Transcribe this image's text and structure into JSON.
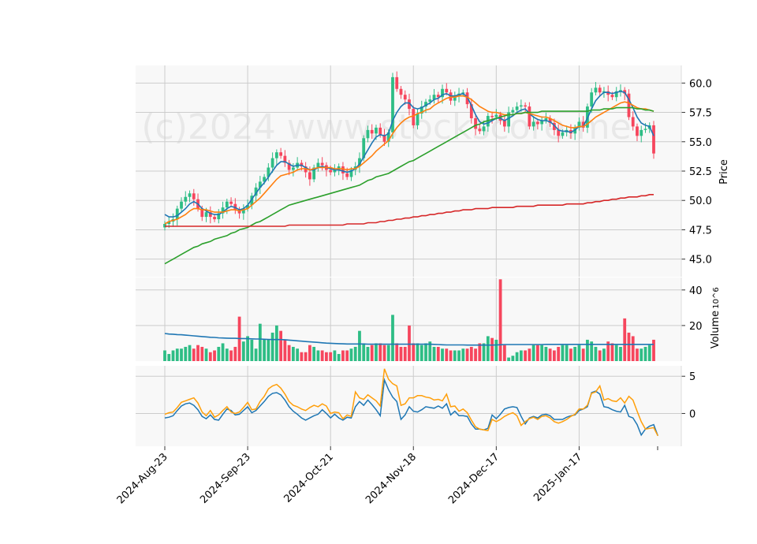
{
  "chart_data": [
    {
      "type": "candlestick",
      "panel": "price",
      "ylabel": "Price",
      "ylim": [
        43.5,
        61.5
      ],
      "yticks": [
        "45.0",
        "47.5",
        "50.0",
        "52.5",
        "55.0",
        "57.5",
        "60.0"
      ],
      "watermark": "(c)2024 www.stockscore.me",
      "xticks": [
        "2024-Aug-23",
        "2024-Sep-23",
        "2024-Oct-21",
        "2024-Nov-18",
        "2024-Dec-17",
        "2025-Jan-17"
      ],
      "xtick_index": [
        0,
        20,
        40,
        60,
        80,
        100
      ],
      "up_color": "#2ebd85",
      "down_color": "#f6465d",
      "close": [
        48.0,
        48.2,
        48.4,
        49.3,
        49.9,
        50.3,
        50.6,
        50.1,
        49.3,
        48.6,
        49.0,
        48.6,
        48.4,
        48.9,
        49.4,
        49.9,
        49.7,
        49.2,
        48.9,
        49.3,
        49.6,
        50.4,
        51.1,
        51.6,
        52.0,
        52.8,
        53.6,
        54.1,
        53.8,
        53.2,
        52.6,
        52.8,
        53.2,
        52.9,
        52.4,
        51.8,
        52.8,
        53.2,
        53.0,
        52.6,
        52.4,
        52.6,
        52.9,
        52.3,
        52.0,
        52.6,
        52.9,
        53.6,
        55.3,
        56.0,
        55.7,
        56.2,
        55.6,
        55.0,
        55.8,
        60.5,
        59.5,
        59.0,
        58.6,
        57.8,
        56.4,
        57.4,
        58.0,
        58.4,
        58.6,
        59.0,
        58.8,
        59.5,
        59.2,
        58.5,
        58.9,
        59.1,
        59.2,
        58.2,
        57.0,
        56.1,
        55.9,
        56.3,
        57.2,
        57.1,
        57.3,
        56.8,
        56.3,
        57.5,
        57.7,
        58.0,
        58.1,
        58.0,
        56.3,
        56.7,
        56.5,
        56.8,
        57.0,
        56.6,
        56.0,
        55.5,
        55.8,
        56.0,
        55.7,
        56.2,
        56.7,
        56.2,
        58.0,
        59.2,
        59.6,
        59.2,
        59.3,
        59.0,
        58.8,
        59.3,
        59.4,
        59.1,
        57.1,
        56.3,
        55.5,
        56.0,
        56.1,
        56.4,
        54.0
      ],
      "ma_lines": [
        {
          "color": "#1f77b4",
          "values": [
            48.8,
            48.6,
            48.6,
            48.7,
            49.0,
            49.3,
            49.7,
            49.9,
            49.7,
            49.3,
            49.1,
            48.9,
            48.8,
            48.8,
            49.0,
            49.3,
            49.5,
            49.4,
            49.2,
            49.3,
            49.6,
            50.1,
            50.6,
            51.1,
            51.5,
            52.0,
            52.5,
            53.0,
            53.3,
            53.3,
            53.1,
            52.9,
            53.0,
            53.0,
            52.8,
            52.6,
            52.6,
            52.8,
            52.9,
            52.8,
            52.7,
            52.6,
            52.6,
            52.5,
            52.4,
            52.5,
            52.7,
            53.1,
            53.7,
            54.3,
            54.9,
            55.4,
            55.6,
            55.5,
            55.7,
            56.8,
            57.5,
            58.0,
            58.3,
            58.3,
            57.9,
            57.8,
            57.9,
            58.1,
            58.3,
            58.6,
            58.7,
            59.0,
            59.1,
            58.9,
            58.9,
            59.0,
            59.1,
            58.8,
            58.1,
            57.3,
            56.7,
            56.5,
            56.6,
            56.8,
            57.0,
            57.0,
            56.8,
            57.0,
            57.2,
            57.5,
            57.7,
            57.8,
            57.4,
            57.1,
            56.9,
            56.8,
            56.8,
            56.7,
            56.4,
            56.0,
            55.9,
            55.9,
            55.8,
            56.0,
            56.3,
            56.3,
            57.0,
            57.8,
            58.5,
            58.9,
            59.2,
            59.2,
            59.1,
            59.2,
            59.3,
            59.2,
            58.6,
            57.9,
            57.1,
            56.6,
            56.4,
            56.3,
            55.5
          ]
        },
        {
          "color": "#ff7f0e",
          "values": [
            48.0,
            48.2,
            48.3,
            48.4,
            48.6,
            48.8,
            49.1,
            49.3,
            49.3,
            49.2,
            49.2,
            49.1,
            49.0,
            49.0,
            49.0,
            49.1,
            49.2,
            49.2,
            49.1,
            49.2,
            49.3,
            49.6,
            49.9,
            50.2,
            50.6,
            51.0,
            51.4,
            51.8,
            52.1,
            52.2,
            52.3,
            52.4,
            52.6,
            52.7,
            52.7,
            52.6,
            52.7,
            52.8,
            52.8,
            52.8,
            52.8,
            52.7,
            52.7,
            52.7,
            52.6,
            52.7,
            52.7,
            52.9,
            53.2,
            53.5,
            53.8,
            54.2,
            54.5,
            54.8,
            55.1,
            55.7,
            56.2,
            56.6,
            56.9,
            57.1,
            57.2,
            57.4,
            57.5,
            57.7,
            57.8,
            58.1,
            58.3,
            58.5,
            58.7,
            58.8,
            58.8,
            58.9,
            58.9,
            58.8,
            58.6,
            58.3,
            58.0,
            57.8,
            57.6,
            57.5,
            57.5,
            57.4,
            57.3,
            57.3,
            57.3,
            57.4,
            57.4,
            57.5,
            57.4,
            57.3,
            57.2,
            57.1,
            57.1,
            57.0,
            56.8,
            56.6,
            56.4,
            56.3,
            56.2,
            56.2,
            56.3,
            56.3,
            56.5,
            56.8,
            57.1,
            57.3,
            57.5,
            57.7,
            57.9,
            58.1,
            58.3,
            58.4,
            58.3,
            58.1,
            57.9,
            57.8,
            57.8,
            57.7,
            57.6
          ]
        },
        {
          "color": "#2ca02c",
          "values": [
            44.6,
            44.8,
            45.0,
            45.2,
            45.4,
            45.6,
            45.8,
            46.0,
            46.1,
            46.3,
            46.4,
            46.5,
            46.7,
            46.8,
            46.9,
            47.0,
            47.2,
            47.3,
            47.5,
            47.6,
            47.7,
            47.9,
            48.1,
            48.2,
            48.4,
            48.6,
            48.8,
            49.0,
            49.2,
            49.4,
            49.6,
            49.7,
            49.8,
            49.9,
            50.0,
            50.1,
            50.2,
            50.3,
            50.4,
            50.5,
            50.6,
            50.7,
            50.8,
            50.9,
            51.0,
            51.1,
            51.2,
            51.3,
            51.5,
            51.7,
            51.8,
            52.0,
            52.1,
            52.2,
            52.3,
            52.5,
            52.7,
            52.9,
            53.1,
            53.3,
            53.4,
            53.6,
            53.8,
            54.0,
            54.2,
            54.4,
            54.6,
            54.8,
            55.0,
            55.2,
            55.4,
            55.6,
            55.8,
            56.0,
            56.2,
            56.4,
            56.5,
            56.7,
            56.8,
            56.9,
            57.0,
            57.1,
            57.2,
            57.3,
            57.3,
            57.4,
            57.4,
            57.5,
            57.5,
            57.5,
            57.5,
            57.6,
            57.6,
            57.6,
            57.6,
            57.6,
            57.6,
            57.6,
            57.6,
            57.6,
            57.6,
            57.6,
            57.6,
            57.7,
            57.7,
            57.7,
            57.8,
            57.8,
            57.8,
            57.9,
            57.9,
            57.9,
            57.9,
            57.9,
            57.8,
            57.8,
            57.7,
            57.7,
            57.6
          ]
        },
        {
          "color": "#d62728",
          "values": [
            47.8,
            47.8,
            47.8,
            47.8,
            47.8,
            47.8,
            47.8,
            47.8,
            47.8,
            47.8,
            47.8,
            47.8,
            47.8,
            47.8,
            47.8,
            47.8,
            47.8,
            47.8,
            47.8,
            47.8,
            47.8,
            47.8,
            47.8,
            47.8,
            47.8,
            47.8,
            47.8,
            47.8,
            47.8,
            47.8,
            47.9,
            47.9,
            47.9,
            47.9,
            47.9,
            47.9,
            47.9,
            47.9,
            47.9,
            47.9,
            47.9,
            47.9,
            47.9,
            47.9,
            48.0,
            48.0,
            48.0,
            48.0,
            48.0,
            48.1,
            48.1,
            48.1,
            48.2,
            48.2,
            48.3,
            48.3,
            48.4,
            48.4,
            48.5,
            48.5,
            48.6,
            48.6,
            48.7,
            48.7,
            48.8,
            48.8,
            48.9,
            48.9,
            49.0,
            49.0,
            49.1,
            49.1,
            49.2,
            49.2,
            49.2,
            49.3,
            49.3,
            49.3,
            49.3,
            49.4,
            49.4,
            49.4,
            49.4,
            49.4,
            49.4,
            49.5,
            49.5,
            49.5,
            49.5,
            49.5,
            49.6,
            49.6,
            49.6,
            49.6,
            49.6,
            49.6,
            49.6,
            49.7,
            49.7,
            49.7,
            49.7,
            49.7,
            49.8,
            49.8,
            49.9,
            49.9,
            50.0,
            50.0,
            50.1,
            50.1,
            50.2,
            50.2,
            50.3,
            50.3,
            50.3,
            50.4,
            50.4,
            50.5,
            50.5
          ]
        }
      ]
    },
    {
      "type": "bar",
      "panel": "volume",
      "ylabel": "Volume",
      "ylabel_exponent": "10^6",
      "ylim": [
        0,
        47
      ],
      "yticks": [
        "20",
        "40"
      ],
      "values": [
        6,
        4,
        6,
        7,
        7,
        8,
        9,
        7,
        9,
        8,
        7,
        5,
        6,
        8,
        10,
        7,
        6,
        8,
        25,
        11,
        14,
        12,
        7,
        21,
        12,
        12,
        16,
        20,
        17,
        12,
        9,
        8,
        7,
        5,
        5,
        9,
        8,
        6,
        6,
        5,
        5,
        6,
        4,
        6,
        6,
        7,
        8,
        17,
        10,
        8,
        9,
        10,
        10,
        9,
        9,
        26,
        10,
        8,
        8,
        20,
        10,
        10,
        9,
        10,
        11,
        8,
        8,
        7,
        7,
        6,
        6,
        6,
        7,
        7,
        8,
        7,
        10,
        10,
        14,
        13,
        12,
        46,
        9,
        2,
        3,
        5,
        6,
        6,
        7,
        9,
        9,
        9,
        8,
        7,
        6,
        8,
        9,
        9,
        7,
        8,
        9,
        7,
        12,
        11,
        8,
        6,
        7,
        11,
        10,
        9,
        8,
        24,
        16,
        14,
        7,
        7,
        8,
        9,
        12
      ],
      "ma": [
        15.5,
        15.2,
        15.1,
        14.9,
        14.8,
        14.6,
        14.4,
        14.2,
        14.0,
        13.8,
        13.6,
        13.4,
        13.3,
        13.1,
        13.0,
        12.9,
        12.8,
        12.8,
        12.7,
        12.7,
        12.6,
        12.5,
        12.4,
        12.4,
        12.3,
        12.2,
        12.1,
        12.1,
        12.1,
        12.0,
        11.8,
        11.6,
        11.4,
        11.2,
        11.0,
        10.8,
        10.7,
        10.5,
        10.3,
        10.1,
        10.0,
        9.9,
        9.8,
        9.7,
        9.6,
        9.6,
        9.6,
        9.6,
        9.6,
        9.5,
        9.5,
        9.5,
        9.5,
        9.5,
        9.5,
        9.5,
        9.5,
        9.5,
        9.5,
        9.5,
        9.5,
        9.5,
        9.5,
        9.5,
        9.5,
        9.4,
        9.3,
        9.2,
        9.1,
        9.1,
        9.1,
        9.1,
        9.1,
        9.0,
        9.0,
        9.0,
        9.0,
        9.0,
        9.0,
        9.0,
        9.1,
        9.2,
        9.3,
        9.3,
        9.3,
        9.3,
        9.3,
        9.3,
        9.3,
        9.3,
        9.3,
        9.3,
        9.4,
        9.4,
        9.4,
        9.4,
        9.4,
        9.4,
        9.4,
        9.4,
        9.4,
        9.4,
        9.4,
        9.4,
        9.4,
        9.4,
        9.4,
        9.4,
        9.4,
        9.4,
        9.4,
        9.4,
        9.4,
        9.4,
        9.4,
        9.4,
        9.4,
        9.4,
        9.4
      ],
      "ma_color": "#1f77b4"
    },
    {
      "type": "line",
      "panel": "macd",
      "ylim": [
        -4.4,
        6.4
      ],
      "yticks": [
        "0",
        "5"
      ],
      "series": [
        {
          "color": "#1f77b4",
          "values": [
            -0.6,
            -0.5,
            -0.3,
            0.4,
            1.0,
            1.3,
            1.4,
            1.1,
            0.5,
            -0.4,
            -0.7,
            -0.2,
            -0.8,
            -0.9,
            -0.1,
            0.6,
            0.4,
            -0.2,
            -0.1,
            0.4,
            0.9,
            0.1,
            0.4,
            1.0,
            1.6,
            2.3,
            2.7,
            2.8,
            2.5,
            1.8,
            0.9,
            0.3,
            -0.1,
            -0.6,
            -0.9,
            -0.6,
            -0.3,
            -0.1,
            0.5,
            0.0,
            -0.6,
            -0.1,
            -0.6,
            -0.9,
            -0.5,
            -0.6,
            0.9,
            1.6,
            1.1,
            1.8,
            1.2,
            0.5,
            -0.3,
            4.5,
            3.2,
            2.2,
            1.6,
            -0.8,
            -0.2,
            0.9,
            0.3,
            0.2,
            0.5,
            0.9,
            0.8,
            0.7,
            1.0,
            0.7,
            1.3,
            -0.2,
            0.3,
            -0.3,
            -0.3,
            -0.4,
            -1.4,
            -2.1,
            -2.1,
            -2.2,
            -2.0,
            -0.2,
            -0.7,
            -0.1,
            0.6,
            0.8,
            0.9,
            0.8,
            -0.4,
            -1.4,
            -0.6,
            -0.4,
            -0.6,
            -0.2,
            -0.1,
            -0.3,
            -0.8,
            -0.8,
            -0.8,
            -0.5,
            -0.3,
            -0.2,
            0.4,
            0.6,
            0.9,
            2.8,
            3.0,
            2.6,
            0.9,
            0.8,
            0.5,
            0.3,
            0.2,
            1.1,
            -0.4,
            -0.6,
            -1.5,
            -2.9,
            -2.1,
            -1.7,
            -1.5,
            -3.0
          ]
        },
        {
          "color": "#ff9f0a",
          "values": [
            -0.1,
            0.1,
            0.2,
            0.8,
            1.5,
            1.7,
            1.9,
            2.1,
            1.4,
            0.2,
            -0.3,
            0.4,
            -0.5,
            -0.2,
            0.4,
            0.9,
            0.2,
            0.0,
            0.2,
            0.8,
            1.5,
            0.5,
            0.6,
            1.6,
            2.3,
            3.3,
            3.7,
            3.9,
            3.4,
            2.6,
            1.6,
            1.1,
            0.9,
            0.6,
            0.4,
            0.8,
            1.1,
            0.9,
            1.3,
            1.0,
            0.0,
            0.2,
            0.1,
            -0.7,
            -0.2,
            -0.4,
            2.9,
            2.1,
            1.9,
            2.5,
            2.1,
            1.7,
            1.0,
            6.0,
            4.6,
            4.0,
            3.7,
            1.1,
            1.3,
            2.1,
            2.1,
            2.4,
            2.4,
            2.2,
            2.1,
            1.8,
            1.9,
            1.7,
            2.6,
            0.9,
            1.0,
            0.3,
            0.6,
            0.1,
            -0.9,
            -1.8,
            -2.1,
            -2.2,
            -2.3,
            -0.8,
            -1.1,
            -0.8,
            -0.4,
            -0.1,
            0.1,
            -0.3,
            -1.6,
            -1.1,
            -0.7,
            -0.5,
            -0.8,
            -0.4,
            -0.3,
            -0.6,
            -1.1,
            -1.3,
            -1.1,
            -0.8,
            -0.4,
            -0.1,
            0.6,
            0.6,
            1.1,
            2.7,
            2.9,
            3.7,
            1.8,
            2.0,
            1.7,
            1.6,
            2.1,
            1.4,
            2.3,
            1.8,
            0.3,
            -1.1,
            -2.1,
            -2.0,
            -1.9,
            -3.0
          ]
        }
      ]
    }
  ]
}
